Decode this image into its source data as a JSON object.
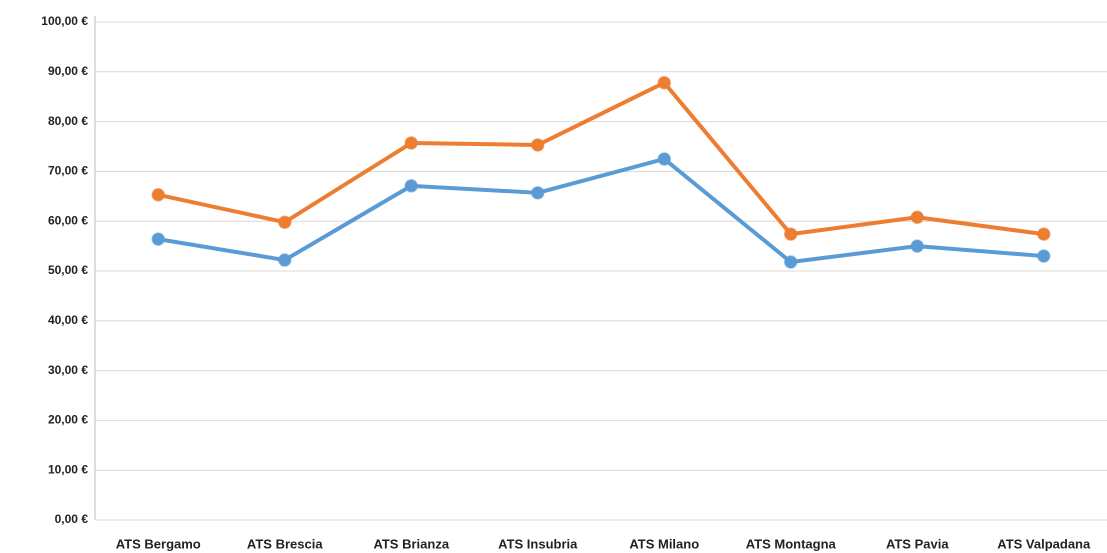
{
  "chart_data": {
    "type": "line",
    "categories": [
      "ATS Bergamo",
      "ATS Brescia",
      "ATS Brianza",
      "ATS Insubria",
      "ATS Milano",
      "ATS Montagna",
      "ATS Pavia",
      "ATS Valpadana"
    ],
    "series": [
      {
        "color": "#5b9bd5",
        "values": [
          56.4,
          52.2,
          67.1,
          65.7,
          72.5,
          51.8,
          55.0,
          53.0
        ]
      },
      {
        "color": "#ed7d31",
        "values": [
          65.3,
          59.8,
          75.7,
          75.3,
          87.8,
          57.4,
          60.8,
          57.4
        ]
      }
    ],
    "ylim": [
      0,
      100
    ],
    "yticks": [
      {
        "value": 0,
        "label": "0,00 €"
      },
      {
        "value": 10,
        "label": "10,00 €"
      },
      {
        "value": 20,
        "label": "20,00 €"
      },
      {
        "value": 30,
        "label": "30,00 €"
      },
      {
        "value": 40,
        "label": "40,00 €"
      },
      {
        "value": 50,
        "label": "50,00 €"
      },
      {
        "value": 60,
        "label": "60,00 €"
      },
      {
        "value": 70,
        "label": "70,00 €"
      },
      {
        "value": 80,
        "label": "80,00 €"
      },
      {
        "value": 90,
        "label": "90,00 €"
      },
      {
        "value": 100,
        "label": "100,00 €"
      }
    ],
    "grid": true
  }
}
